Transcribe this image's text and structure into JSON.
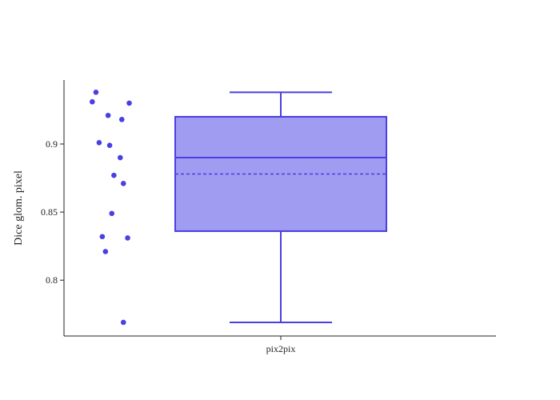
{
  "chart_data": {
    "type": "box",
    "title": "",
    "xlabel": "",
    "ylabel": "Dice glom. pixel",
    "categories": [
      "pix2pix"
    ],
    "yticks": [
      0.8,
      0.85,
      0.9
    ],
    "ylim": [
      0.759,
      0.947
    ],
    "grid": false,
    "legend": "none",
    "colors": {
      "box_fill": "#a09cf2",
      "box_line": "#4a3fe0",
      "points": "#4a3fe0",
      "axis": "#222222"
    },
    "box": {
      "category": "pix2pix",
      "min": 0.769,
      "q1": 0.836,
      "median": 0.89,
      "mean": 0.878,
      "q3": 0.92,
      "max": 0.938
    },
    "points": [
      {
        "jitter": 0.09,
        "y": 0.938
      },
      {
        "jitter": 0.02,
        "y": 0.931
      },
      {
        "jitter": 0.72,
        "y": 0.93
      },
      {
        "jitter": 0.32,
        "y": 0.921
      },
      {
        "jitter": 0.58,
        "y": 0.918
      },
      {
        "jitter": 0.15,
        "y": 0.901
      },
      {
        "jitter": 0.35,
        "y": 0.899
      },
      {
        "jitter": 0.55,
        "y": 0.89
      },
      {
        "jitter": 0.43,
        "y": 0.877
      },
      {
        "jitter": 0.61,
        "y": 0.871
      },
      {
        "jitter": 0.39,
        "y": 0.849
      },
      {
        "jitter": 0.21,
        "y": 0.832
      },
      {
        "jitter": 0.69,
        "y": 0.831
      },
      {
        "jitter": 0.27,
        "y": 0.821
      },
      {
        "jitter": 0.61,
        "y": 0.769
      }
    ]
  }
}
